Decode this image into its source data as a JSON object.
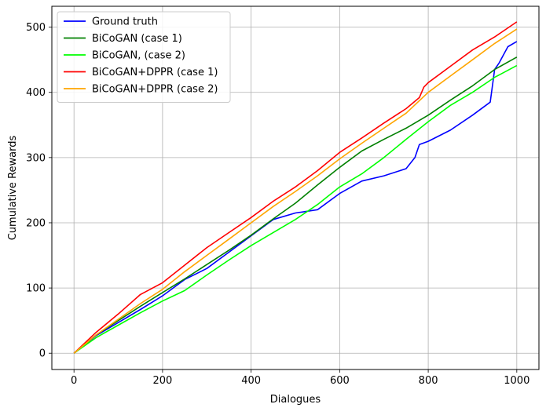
{
  "chart_data": {
    "type": "line",
    "title": "",
    "xlabel": "Dialogues",
    "ylabel": "Cumulative Rewards",
    "xlim": [
      -50,
      1050
    ],
    "ylim": [
      -25,
      532
    ],
    "xticks": [
      0,
      200,
      400,
      600,
      800,
      1000
    ],
    "yticks": [
      0,
      100,
      200,
      300,
      400,
      500
    ],
    "grid": true,
    "legend_position": "top-left",
    "series": [
      {
        "name": "Ground truth",
        "color": "#0000ff",
        "x": [
          0,
          50,
          100,
          150,
          200,
          230,
          250,
          300,
          350,
          400,
          450,
          500,
          550,
          600,
          650,
          700,
          750,
          770,
          780,
          800,
          850,
          900,
          940,
          950,
          960,
          980,
          1000
        ],
        "y": [
          0,
          27,
          47,
          67,
          88,
          103,
          113,
          130,
          155,
          180,
          205,
          215,
          220,
          245,
          264,
          272,
          283,
          300,
          320,
          325,
          342,
          365,
          385,
          435,
          445,
          470,
          478
        ]
      },
      {
        "name": "BiCoGAN (case 1)",
        "color": "#008000",
        "x": [
          0,
          50,
          100,
          150,
          200,
          250,
          300,
          350,
          400,
          450,
          500,
          550,
          600,
          650,
          700,
          750,
          800,
          850,
          900,
          950,
          1000
        ],
        "y": [
          0,
          28,
          50,
          72,
          93,
          114,
          136,
          158,
          181,
          206,
          230,
          258,
          285,
          310,
          328,
          345,
          365,
          388,
          410,
          435,
          454
        ]
      },
      {
        "name": "BiCoGAN, (case 2)",
        "color": "#00ff00",
        "x": [
          0,
          50,
          100,
          150,
          200,
          250,
          300,
          350,
          400,
          450,
          500,
          550,
          600,
          650,
          700,
          750,
          800,
          850,
          900,
          950,
          1000
        ],
        "y": [
          0,
          24,
          43,
          62,
          80,
          96,
          120,
          143,
          165,
          185,
          205,
          228,
          255,
          275,
          300,
          328,
          355,
          380,
          400,
          423,
          441
        ]
      },
      {
        "name": "BiCoGAN+DPPR (case 1)",
        "color": "#ff0000",
        "x": [
          0,
          50,
          100,
          150,
          200,
          250,
          300,
          350,
          400,
          450,
          500,
          550,
          600,
          650,
          700,
          750,
          780,
          790,
          800,
          850,
          900,
          950,
          1000
        ],
        "y": [
          0,
          32,
          60,
          90,
          108,
          135,
          162,
          185,
          208,
          233,
          255,
          280,
          308,
          330,
          353,
          375,
          392,
          408,
          415,
          440,
          465,
          485,
          508
        ]
      },
      {
        "name": "BiCoGAN+DPPR (case 2)",
        "color": "#ffa500",
        "x": [
          0,
          50,
          100,
          150,
          200,
          250,
          300,
          350,
          400,
          450,
          500,
          550,
          600,
          650,
          700,
          750,
          800,
          850,
          900,
          950,
          1000
        ],
        "y": [
          0,
          28,
          52,
          76,
          98,
          125,
          150,
          175,
          200,
          225,
          248,
          272,
          298,
          322,
          345,
          368,
          400,
          425,
          450,
          475,
          497
        ]
      }
    ]
  }
}
